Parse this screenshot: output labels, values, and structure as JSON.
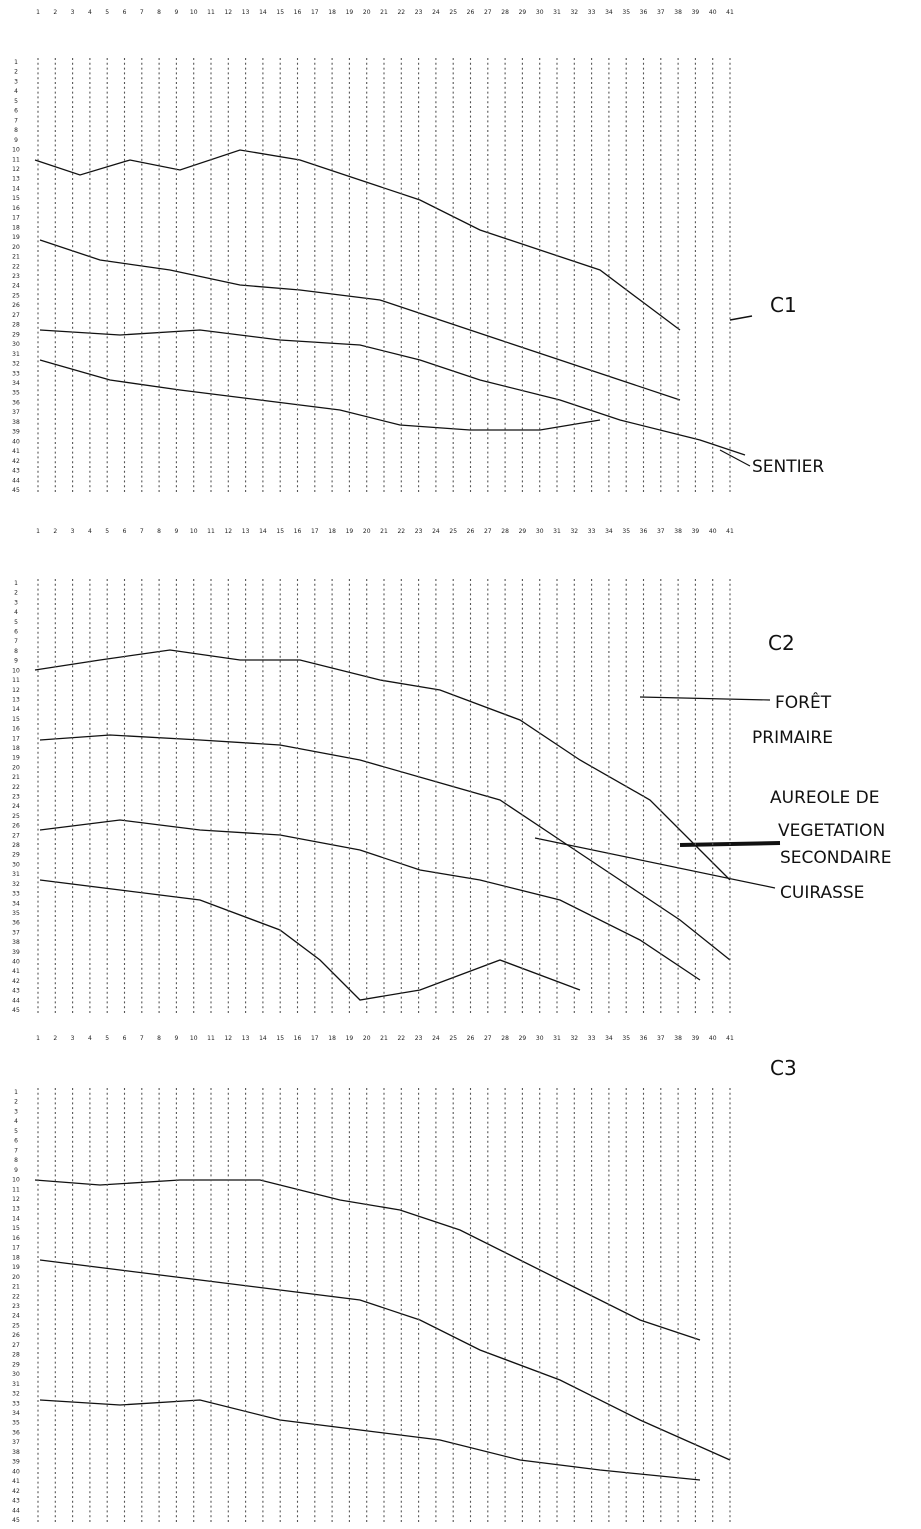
{
  "grids": [
    {
      "label": "C1",
      "columns": [
        1,
        2,
        3,
        4,
        5,
        6,
        7,
        8,
        9,
        10,
        11,
        12,
        13,
        14,
        15,
        16,
        17,
        18,
        19,
        20,
        21,
        22,
        23,
        24,
        25,
        26,
        27,
        28,
        29,
        30,
        31,
        32,
        33,
        34,
        35,
        36,
        37,
        38,
        39,
        40,
        41
      ],
      "rows": [
        1,
        2,
        3,
        4,
        5,
        6,
        7,
        8,
        9,
        10,
        11,
        12,
        13,
        14,
        15,
        16,
        17,
        18,
        19,
        20,
        21,
        22,
        23,
        24,
        25,
        26,
        27,
        28,
        29,
        30,
        31,
        32,
        33,
        34,
        35,
        36,
        37,
        38,
        39,
        40,
        41,
        42,
        43,
        44,
        45
      ],
      "annotations": [
        "SENTIER"
      ]
    },
    {
      "label": "C2",
      "columns": [
        1,
        2,
        3,
        4,
        5,
        6,
        7,
        8,
        9,
        10,
        11,
        12,
        13,
        14,
        15,
        16,
        17,
        18,
        19,
        20,
        21,
        22,
        23,
        24,
        25,
        26,
        27,
        28,
        29,
        30,
        31,
        32,
        33,
        34,
        35,
        36,
        37,
        38,
        39,
        40,
        41
      ],
      "rows": [
        1,
        2,
        3,
        4,
        5,
        6,
        7,
        8,
        9,
        10,
        11,
        12,
        13,
        14,
        15,
        16,
        17,
        18,
        19,
        20,
        21,
        22,
        23,
        24,
        25,
        26,
        27,
        28,
        29,
        30,
        31,
        32,
        33,
        34,
        35,
        36,
        37,
        38,
        39,
        40,
        41,
        42,
        43,
        44,
        45
      ],
      "annotations": [
        "FORÊT",
        "PRIMAIRE",
        "AUREOLE DE",
        "VEGETATION",
        "SECONDAIRE",
        "CUIRASSE"
      ]
    },
    {
      "label": "C3",
      "columns": [
        1,
        2,
        3,
        4,
        5,
        6,
        7,
        8,
        9,
        10,
        11,
        12,
        13,
        14,
        15,
        16,
        17,
        18,
        19,
        20,
        21,
        22,
        23,
        24,
        25,
        26,
        27,
        28,
        29,
        30,
        31,
        32,
        33,
        34,
        35,
        36,
        37,
        38,
        39,
        40,
        41
      ],
      "rows": [
        1,
        2,
        3,
        4,
        5,
        6,
        7,
        8,
        9,
        10,
        11,
        12,
        13,
        14,
        15,
        16,
        17,
        18,
        19,
        20,
        21,
        22,
        23,
        24,
        25,
        26,
        27,
        28,
        29,
        30,
        31,
        32,
        33,
        34,
        35,
        36,
        37,
        38,
        39,
        40,
        41,
        42,
        43,
        44,
        45
      ],
      "annotations": []
    }
  ]
}
